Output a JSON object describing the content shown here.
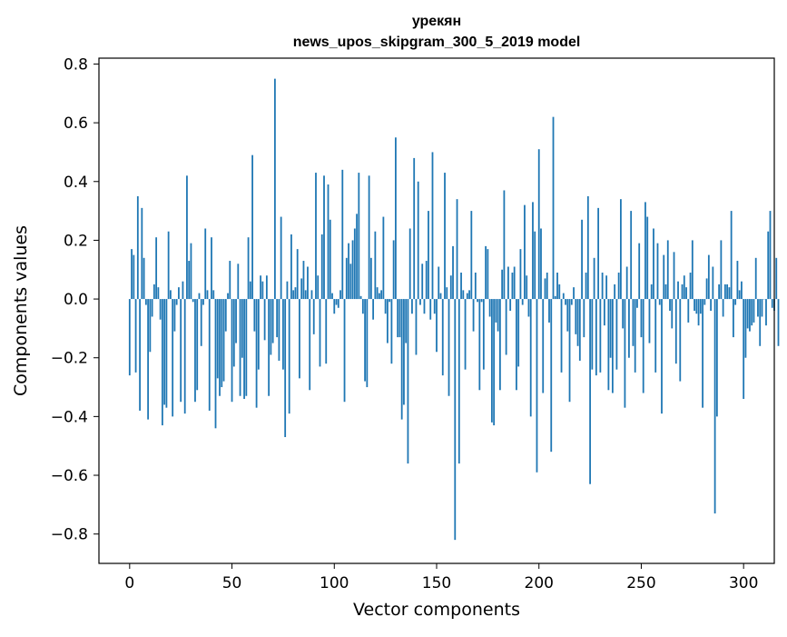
{
  "chart_data": {
    "type": "bar",
    "title": "урекян",
    "subtitle": "news_upos_skipgram_300_5_2019 model",
    "xlabel": "Vector components",
    "ylabel": "Components values",
    "xlim": [
      -15,
      315
    ],
    "ylim": [
      -0.9,
      0.82
    ],
    "x_ticks": [
      0,
      50,
      100,
      150,
      200,
      250,
      300
    ],
    "y_ticks": [
      -0.8,
      -0.6,
      -0.4,
      -0.2,
      0.0,
      0.2,
      0.4,
      0.6,
      0.8
    ],
    "y_tick_labels": [
      "−0.8",
      "−0.6",
      "−0.4",
      "−0.2",
      "0.0",
      "0.2",
      "0.4",
      "0.6",
      "0.8"
    ],
    "bar_color": "#1f77b4",
    "grid": false,
    "legend": "none",
    "values": [
      -0.26,
      0.17,
      0.15,
      -0.25,
      0.35,
      -0.38,
      0.31,
      0.14,
      -0.02,
      -0.41,
      -0.18,
      -0.06,
      0.05,
      0.21,
      0.04,
      -0.07,
      -0.43,
      -0.36,
      -0.37,
      0.23,
      0.03,
      -0.4,
      -0.11,
      -0.02,
      0.04,
      -0.35,
      0.06,
      -0.39,
      0.42,
      0.13,
      0.19,
      -0.01,
      -0.35,
      -0.31,
      0.02,
      -0.16,
      -0.02,
      0.24,
      0.03,
      -0.38,
      0.21,
      0.03,
      -0.44,
      -0.27,
      -0.33,
      -0.3,
      -0.28,
      -0.11,
      0.02,
      0.13,
      -0.35,
      -0.23,
      -0.15,
      0.12,
      -0.33,
      -0.2,
      -0.34,
      -0.33,
      0.21,
      0.06,
      0.49,
      -0.11,
      -0.37,
      -0.24,
      0.08,
      0.06,
      -0.14,
      0.08,
      -0.33,
      -0.19,
      -0.15,
      0.75,
      -0.13,
      -0.21,
      0.28,
      -0.24,
      -0.47,
      0.06,
      -0.39,
      0.22,
      0.03,
      0.04,
      0.17,
      -0.27,
      0.07,
      0.13,
      0.03,
      0.11,
      -0.31,
      0.03,
      -0.12,
      0.43,
      0.08,
      -0.23,
      0.22,
      0.42,
      -0.22,
      0.39,
      0.27,
      0.02,
      -0.05,
      -0.02,
      -0.03,
      0.03,
      0.44,
      -0.35,
      0.14,
      0.19,
      0.12,
      0.2,
      0.24,
      0.29,
      0.43,
      0.01,
      -0.05,
      -0.28,
      -0.3,
      0.42,
      0.14,
      -0.07,
      0.23,
      0.04,
      0.02,
      0.03,
      0.28,
      -0.05,
      -0.15,
      -0.01,
      -0.22,
      0.2,
      0.55,
      -0.13,
      -0.13,
      -0.41,
      -0.36,
      -0.15,
      -0.56,
      0.24,
      -0.05,
      0.48,
      -0.19,
      0.4,
      -0.02,
      0.12,
      -0.05,
      0.13,
      0.3,
      -0.07,
      0.5,
      -0.05,
      -0.18,
      0.11,
      0.02,
      -0.26,
      0.43,
      0.04,
      -0.33,
      0.08,
      0.18,
      -0.82,
      0.34,
      -0.56,
      0.09,
      0.03,
      -0.24,
      0.02,
      0.03,
      0.3,
      -0.11,
      0.09,
      -0.01,
      -0.31,
      -0.01,
      -0.24,
      0.18,
      0.17,
      -0.06,
      -0.42,
      -0.43,
      -0.08,
      -0.11,
      -0.31,
      0.1,
      0.37,
      -0.19,
      0.11,
      -0.04,
      0.09,
      0.11,
      -0.31,
      -0.23,
      0.17,
      -0.02,
      0.32,
      0.08,
      -0.06,
      -0.4,
      0.33,
      0.23,
      -0.59,
      0.51,
      0.24,
      -0.32,
      0.07,
      0.09,
      -0.08,
      -0.52,
      0.62,
      0.01,
      0.09,
      0.05,
      -0.25,
      0.02,
      -0.02,
      -0.11,
      -0.35,
      -0.02,
      0.04,
      -0.12,
      -0.16,
      -0.21,
      0.27,
      -0.13,
      0.09,
      0.35,
      -0.63,
      -0.24,
      0.14,
      -0.26,
      0.31,
      -0.25,
      0.09,
      -0.09,
      0.08,
      -0.31,
      -0.2,
      -0.32,
      0.05,
      -0.24,
      0.09,
      0.34,
      -0.1,
      -0.37,
      0.11,
      -0.2,
      0.3,
      -0.16,
      -0.25,
      -0.03,
      0.19,
      -0.13,
      -0.32,
      0.33,
      0.28,
      -0.15,
      0.05,
      0.24,
      -0.25,
      0.19,
      -0.02,
      -0.39,
      0.15,
      0.05,
      0.2,
      -0.04,
      -0.1,
      0.16,
      -0.22,
      0.06,
      -0.28,
      0.05,
      0.08,
      0.04,
      -0.08,
      0.09,
      0.2,
      -0.04,
      -0.05,
      -0.09,
      -0.05,
      -0.37,
      -0.02,
      0.07,
      0.15,
      -0.04,
      0.11,
      -0.73,
      -0.4,
      0.05,
      0.2,
      -0.06,
      0.05,
      0.05,
      0.04,
      0.3,
      -0.13,
      -0.02,
      0.13,
      0.03,
      0.06,
      -0.34,
      -0.2,
      -0.1,
      -0.11,
      -0.09,
      -0.08,
      0.14,
      -0.06,
      -0.16,
      -0.06,
      0.0,
      -0.09,
      0.23,
      0.3,
      -0.03,
      -0.04,
      0.14,
      -0.16
    ]
  }
}
